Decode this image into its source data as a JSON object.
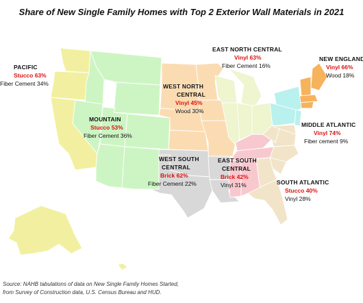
{
  "title": "Share of New Single Family Homes with Top 2 Exterior Wall Materials in 2021",
  "colors": {
    "pacific": "#f2f0a0",
    "mountain": "#cdf5c3",
    "west_north_central": "#fbdcb2",
    "east_north_central": "#eef5cf",
    "new_england": "#f7b25c",
    "middle_atlantic": "#b9f1ee",
    "west_south_central": "#d8d8d8",
    "east_south_central": "#f8c8cf",
    "south_atlantic": "#f1e4c8",
    "accent_material": "#dd1111"
  },
  "regions": [
    {
      "name": "PACIFIC",
      "material_1": "Stucco 63%",
      "material_2": "Fiber Cement 34%"
    },
    {
      "name": "MOUNTAIN",
      "material_1": "Stucco 53%",
      "material_2": "Fiber Cement 36%"
    },
    {
      "name_line1": "WEST NORTH",
      "name_line2": "CENTRAL",
      "material_1": "Vinyl 45%",
      "material_2": "Wood 30%"
    },
    {
      "name": "EAST NORTH CENTRAL",
      "material_1": "Vinyl 63%",
      "material_2": "Fiber Cement 16%"
    },
    {
      "name": "NEW ENGLAND",
      "material_1": "Vinyl 66%",
      "material_2": "Wood 18%"
    },
    {
      "name": "MIDDLE ATLANTIC",
      "material_1": "Vinyl 74%",
      "material_2": "Fiber cement 9%"
    },
    {
      "name_line1": "WEST SOUTH",
      "name_line2": "CENTRAL",
      "material_1": "Brick 62%",
      "material_2": "Fiber Cement 22%"
    },
    {
      "name_line1": "EAST SOUTH",
      "name_line2": "CENTRAL",
      "material_1": "Brick 42%",
      "material_2": "Vinyl 31%"
    },
    {
      "name": "SOUTH ATLANTIC",
      "material_1": "Stucco 40%",
      "material_2": "Vinyl 28%"
    }
  ],
  "source_line1": "Source: NAHB tabulations of data on New Single Family Homes Started,",
  "source_line2": "from Survey of Construction data, U.S. Census Bureau and HUD."
}
